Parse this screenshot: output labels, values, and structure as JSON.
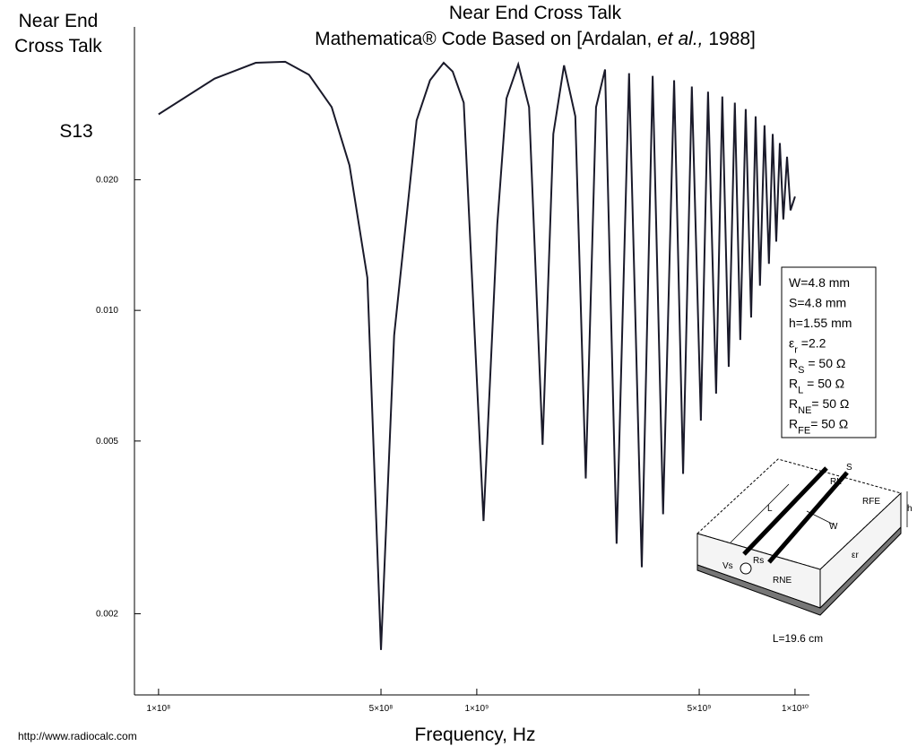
{
  "chart_data": {
    "type": "line",
    "corner_label": [
      "Near End",
      "Cross Talk"
    ],
    "title": "Near  End Cross Talk",
    "subtitle": [
      "Mathematica® Code Based on [Ardalan, ",
      "et  al.,",
      " 1988]"
    ],
    "ylabel": "S13",
    "xlabel": "Frequency,   Hz",
    "footer": "http://www.radiocalc.com",
    "log_x": true,
    "log_y": true,
    "xlim": [
      84000000,
      11100000000
    ],
    "ylim": [
      0.0013,
      0.045
    ],
    "xticks": [
      {
        "value": 100000000,
        "label": "1×10⁸"
      },
      {
        "value": 500000000,
        "label": "5×10⁸"
      },
      {
        "value": 1000000000,
        "label": "1×10⁹"
      },
      {
        "value": 5000000000,
        "label": "5×10⁹"
      },
      {
        "value": 10000000000,
        "label": "1×10¹⁰"
      }
    ],
    "yticks": [
      0.002,
      0.005,
      {
        "value": 0.01,
        "label": "0.010"
      },
      {
        "value": 0.02,
        "label": "0.020"
      }
    ],
    "color": "#1a1a2a",
    "x": [
      100000000,
      150000000,
      202000000,
      250000000,
      297000000,
      350000000,
      398000000,
      453000000,
      500000000,
      550000000,
      647000000,
      713000000,
      787000000,
      840000000,
      910000000,
      1050000000,
      1160000000,
      1240000000,
      1350000000,
      1460000000,
      1610000000,
      1740000000,
      1880000000,
      2040000000,
      2200000000,
      2370000000,
      2530000000,
      2750000000,
      3010000000,
      3300000000,
      3570000000,
      3850000000,
      4170000000,
      4450000000,
      4740000000,
      5060000000,
      5330000000,
      5650000000,
      5910000000,
      6190000000,
      6470000000,
      6730000000,
      7000000000,
      7280000000,
      7520000000,
      7760000000,
      8020000000,
      8280000000,
      8510000000,
      8730000000,
      8960000000,
      9190000000,
      9440000000,
      9680000000,
      10000000000
    ],
    "values": [
      0.0283,
      0.0342,
      0.0372,
      0.0374,
      0.0349,
      0.0294,
      0.0216,
      0.0119,
      0.00165,
      0.00876,
      0.0274,
      0.0339,
      0.0372,
      0.0355,
      0.0301,
      0.00327,
      0.0158,
      0.0308,
      0.0369,
      0.0294,
      0.0049,
      0.0255,
      0.0367,
      0.028,
      0.0041,
      0.0294,
      0.0359,
      0.0029,
      0.0352,
      0.00256,
      0.0347,
      0.00339,
      0.0339,
      0.0042,
      0.0328,
      0.00557,
      0.0319,
      0.00643,
      0.0311,
      0.00741,
      0.0301,
      0.00855,
      0.0291,
      0.00963,
      0.028,
      0.0114,
      0.0267,
      0.0128,
      0.0255,
      0.0144,
      0.0243,
      0.0162,
      0.0226,
      0.017,
      0.0183
    ],
    "params": [
      [
        "W=4.8 mm"
      ],
      [
        "S=4.8 mm"
      ],
      [
        "h=1.55 mm"
      ],
      [
        "ε",
        "r",
        " =2.2"
      ],
      [
        "R",
        "S",
        "  = 50 Ω"
      ],
      [
        "R",
        "L",
        "  = 50 Ω"
      ],
      [
        "R",
        "NE",
        "= 50 Ω"
      ],
      [
        "R",
        "FE",
        "= 50 Ω"
      ]
    ],
    "diagram_labels": {
      "s": "S",
      "rl": "RL",
      "rfe": "RFE",
      "h": "h",
      "l": "L",
      "w": "W",
      "vs": "Vs",
      "rs": "Rs",
      "rne": "RNE",
      "er": "εr",
      "length": "L=19.6 cm"
    }
  }
}
